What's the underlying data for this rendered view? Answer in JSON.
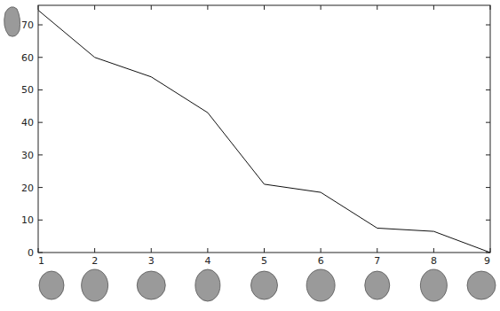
{
  "chart_data": {
    "type": "line",
    "x": [
      1,
      2,
      3,
      4,
      5,
      6,
      7,
      8,
      9
    ],
    "values": [
      74.5,
      60,
      54,
      43,
      21,
      18.5,
      7.5,
      6.5,
      0
    ],
    "color": "#111111",
    "xlim": [
      1,
      9
    ],
    "xticks": [
      1,
      2,
      3,
      4,
      5,
      6,
      7,
      8,
      9
    ],
    "ylim": [
      0,
      76
    ],
    "yticks": [
      0,
      10,
      20,
      30,
      40,
      50,
      60,
      70
    ],
    "grid": false
  }
}
